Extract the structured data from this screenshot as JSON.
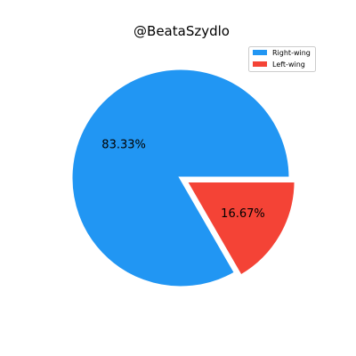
{
  "chart_data": {
    "type": "pie",
    "title": "@BeataSzydlo",
    "slices": [
      {
        "label": "Right-wing",
        "value": 83.33,
        "display": "83.33%",
        "color": "#2196F3",
        "exploded": false
      },
      {
        "label": "Left-wing",
        "value": 16.67,
        "display": "16.67%",
        "color": "#F44336",
        "exploded": true
      }
    ],
    "legend_position": "top-right"
  }
}
